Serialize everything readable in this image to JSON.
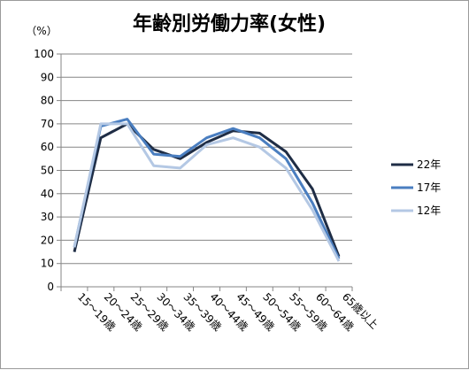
{
  "chart_data": {
    "type": "line",
    "title": "年齢別労働力率(女性)",
    "unit_label": "（%）",
    "xlabel": "",
    "ylabel": "",
    "ylim": [
      0,
      100
    ],
    "yticks": [
      0,
      10,
      20,
      30,
      40,
      50,
      60,
      70,
      80,
      90,
      100
    ],
    "grid": true,
    "legend_position": "right",
    "categories": [
      "15～19歳",
      "20～24歳",
      "25～29歳",
      "30～34歳",
      "35～39歳",
      "40～44歳",
      "45～49歳",
      "50～54歳",
      "55～59歳",
      "60～64歳",
      "65歳以上"
    ],
    "series": [
      {
        "name": "22年",
        "color": "#1f2d45",
        "values": [
          15,
          64,
          70,
          59,
          55,
          62,
          67,
          66,
          58,
          42,
          13
        ]
      },
      {
        "name": "17年",
        "color": "#4a7ec0",
        "values": [
          17,
          69,
          72,
          57,
          56,
          64,
          68,
          64,
          55,
          36,
          12
        ]
      },
      {
        "name": "12年",
        "color": "#b4c8e4",
        "values": [
          17,
          70,
          70,
          52,
          51,
          61,
          64,
          60,
          51,
          33,
          11
        ]
      }
    ]
  }
}
